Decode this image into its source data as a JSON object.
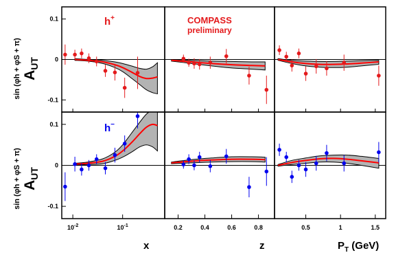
{
  "chart_data": {
    "type": "scatter",
    "title": "",
    "annotation": {
      "experiment": "COMPASS",
      "status": "preliminary"
    },
    "ylabel": {
      "main": "A",
      "sub": "UT",
      "sup": "sin (φh + φS + π)"
    },
    "ylim": [
      -0.13,
      0.13
    ],
    "yticks": [
      {
        "v": 0.1,
        "label": "0.1"
      },
      {
        "v": 0,
        "label": "0"
      },
      {
        "v": -0.1,
        "label": "-0.1"
      }
    ],
    "columns": [
      {
        "key": "x",
        "xlabel": "x",
        "scale": "log",
        "xlim": [
          0.006,
          0.7
        ],
        "ticks": [
          {
            "v": 0.01,
            "base": "10",
            "exp": "-2"
          },
          {
            "v": 0.1,
            "base": "10",
            "exp": "-1"
          }
        ]
      },
      {
        "key": "z",
        "xlabel": "z",
        "scale": "linear",
        "xlim": [
          0.1,
          0.92
        ],
        "ticks": [
          {
            "v": 0.2,
            "label": "0.2"
          },
          {
            "v": 0.4,
            "label": "0.4"
          },
          {
            "v": 0.6,
            "label": "0.6"
          },
          {
            "v": 0.8,
            "label": "0.8"
          }
        ]
      },
      {
        "key": "pt",
        "xlabel": {
          "main": "P",
          "sub": "T",
          "rest": " (GeV)"
        },
        "scale": "linear",
        "xlim": [
          0.05,
          1.65
        ],
        "ticks": [
          {
            "v": 0.5,
            "label": "0.5"
          },
          {
            "v": 1,
            "label": "1"
          },
          {
            "v": 1.5,
            "label": "1.5"
          }
        ]
      }
    ],
    "rows": [
      {
        "label": "h",
        "charge": "+",
        "color": "#e41a1c",
        "panels": [
          {
            "points": [
              [
                0.007,
                0.012,
                0.025
              ],
              [
                0.011,
                0.012,
                0.012
              ],
              [
                0.015,
                0.015,
                0.012
              ],
              [
                0.021,
                0.003,
                0.012
              ],
              [
                0.03,
                -0.005,
                0.012
              ],
              [
                0.045,
                -0.028,
                0.015
              ],
              [
                0.07,
                -0.032,
                0.02
              ],
              [
                0.11,
                -0.07,
                0.025
              ],
              [
                0.2,
                -0.033,
                0.04
              ]
            ],
            "model": [
              [
                0.011,
                0.0
              ],
              [
                0.02,
                -0.002
              ],
              [
                0.04,
                -0.006
              ],
              [
                0.07,
                -0.013
              ],
              [
                0.1,
                -0.02
              ],
              [
                0.15,
                -0.031
              ],
              [
                0.22,
                -0.042
              ],
              [
                0.3,
                -0.047
              ],
              [
                0.4,
                -0.046
              ],
              [
                0.5,
                -0.043
              ]
            ],
            "band_hi": [
              [
                0.011,
                0.002
              ],
              [
                0.02,
                0.0
              ],
              [
                0.04,
                -0.002
              ],
              [
                0.07,
                -0.006
              ],
              [
                0.1,
                -0.01
              ],
              [
                0.15,
                -0.016
              ],
              [
                0.22,
                -0.022
              ],
              [
                0.3,
                -0.024
              ],
              [
                0.4,
                -0.018
              ],
              [
                0.5,
                -0.008
              ]
            ],
            "band_lo": [
              [
                0.011,
                -0.002
              ],
              [
                0.02,
                -0.004
              ],
              [
                0.04,
                -0.01
              ],
              [
                0.07,
                -0.02
              ],
              [
                0.1,
                -0.03
              ],
              [
                0.15,
                -0.046
              ],
              [
                0.22,
                -0.062
              ],
              [
                0.3,
                -0.075
              ],
              [
                0.4,
                -0.082
              ],
              [
                0.5,
                -0.085
              ]
            ]
          },
          {
            "points": [
              [
                0.24,
                0.002,
                0.01
              ],
              [
                0.28,
                -0.008,
                0.01
              ],
              [
                0.32,
                -0.01,
                0.013
              ],
              [
                0.36,
                -0.012,
                0.013
              ],
              [
                0.44,
                -0.008,
                0.015
              ],
              [
                0.56,
                0.008,
                0.018
              ],
              [
                0.73,
                -0.04,
                0.022
              ],
              [
                0.86,
                -0.075,
                0.035
              ]
            ],
            "model": [
              [
                0.15,
                -0.002
              ],
              [
                0.3,
                -0.006
              ],
              [
                0.45,
                -0.01
              ],
              [
                0.6,
                -0.013
              ],
              [
                0.75,
                -0.015
              ],
              [
                0.85,
                -0.016
              ]
            ],
            "band_hi": [
              [
                0.15,
                0.0
              ],
              [
                0.3,
                -0.002
              ],
              [
                0.45,
                -0.004
              ],
              [
                0.6,
                -0.005
              ],
              [
                0.75,
                -0.006
              ],
              [
                0.85,
                -0.006
              ]
            ],
            "band_lo": [
              [
                0.15,
                -0.004
              ],
              [
                0.3,
                -0.01
              ],
              [
                0.45,
                -0.016
              ],
              [
                0.6,
                -0.021
              ],
              [
                0.75,
                -0.024
              ],
              [
                0.85,
                -0.026
              ]
            ]
          },
          {
            "points": [
              [
                0.12,
                0.023,
                0.012
              ],
              [
                0.22,
                0.007,
                0.012
              ],
              [
                0.3,
                -0.015,
                0.015
              ],
              [
                0.4,
                0.015,
                0.012
              ],
              [
                0.5,
                -0.035,
                0.018
              ],
              [
                0.65,
                -0.017,
                0.018
              ],
              [
                0.8,
                -0.022,
                0.018
              ],
              [
                1.05,
                -0.008,
                0.02
              ],
              [
                1.55,
                -0.04,
                0.025
              ]
            ],
            "model": [
              [
                0.1,
                0.0
              ],
              [
                0.3,
                -0.006
              ],
              [
                0.5,
                -0.01
              ],
              [
                0.7,
                -0.012
              ],
              [
                0.9,
                -0.012
              ],
              [
                1.1,
                -0.011
              ],
              [
                1.3,
                -0.009
              ],
              [
                1.55,
                -0.006
              ]
            ],
            "band_hi": [
              [
                0.1,
                0.002
              ],
              [
                0.3,
                -0.002
              ],
              [
                0.5,
                -0.004
              ],
              [
                0.7,
                -0.005
              ],
              [
                0.9,
                -0.005
              ],
              [
                1.1,
                -0.004
              ],
              [
                1.3,
                -0.003
              ],
              [
                1.55,
                -0.002
              ]
            ],
            "band_lo": [
              [
                0.1,
                -0.002
              ],
              [
                0.3,
                -0.01
              ],
              [
                0.5,
                -0.016
              ],
              [
                0.7,
                -0.019
              ],
              [
                0.9,
                -0.02
              ],
              [
                1.1,
                -0.019
              ],
              [
                1.3,
                -0.016
              ],
              [
                1.55,
                -0.012
              ]
            ]
          }
        ]
      },
      {
        "label": "h",
        "charge": "−",
        "color": "#0000ee",
        "panels": [
          {
            "points": [
              [
                0.007,
                -0.052,
                0.035
              ],
              [
                0.011,
                0.003,
                0.018
              ],
              [
                0.015,
                -0.01,
                0.015
              ],
              [
                0.021,
                0.0,
                0.013
              ],
              [
                0.03,
                0.015,
                0.012
              ],
              [
                0.045,
                -0.007,
                0.015
              ],
              [
                0.07,
                0.025,
                0.018
              ],
              [
                0.11,
                0.053,
                0.02
              ],
              [
                0.2,
                0.12,
                0.03
              ]
            ],
            "model": [
              [
                0.011,
                0.003
              ],
              [
                0.02,
                0.005
              ],
              [
                0.04,
                0.01
              ],
              [
                0.07,
                0.022
              ],
              [
                0.1,
                0.035
              ],
              [
                0.15,
                0.055
              ],
              [
                0.22,
                0.077
              ],
              [
                0.3,
                0.093
              ],
              [
                0.4,
                0.1
              ],
              [
                0.5,
                0.097
              ]
            ],
            "band_hi": [
              [
                0.011,
                0.005
              ],
              [
                0.02,
                0.008
              ],
              [
                0.04,
                0.016
              ],
              [
                0.07,
                0.032
              ],
              [
                0.1,
                0.05
              ],
              [
                0.15,
                0.078
              ],
              [
                0.22,
                0.105
              ],
              [
                0.3,
                0.125
              ],
              [
                0.4,
                0.135
              ],
              [
                0.5,
                0.14
              ]
            ],
            "band_lo": [
              [
                0.011,
                0.001
              ],
              [
                0.02,
                0.002
              ],
              [
                0.04,
                0.004
              ],
              [
                0.07,
                0.012
              ],
              [
                0.1,
                0.02
              ],
              [
                0.15,
                0.032
              ],
              [
                0.22,
                0.045
              ],
              [
                0.3,
                0.05
              ],
              [
                0.4,
                0.045
              ],
              [
                0.5,
                0.035
              ]
            ]
          },
          {
            "points": [
              [
                0.24,
                0.002,
                0.01
              ],
              [
                0.28,
                0.015,
                0.012
              ],
              [
                0.32,
                0.0,
                0.012
              ],
              [
                0.36,
                0.02,
                0.013
              ],
              [
                0.44,
                -0.002,
                0.015
              ],
              [
                0.56,
                0.022,
                0.018
              ],
              [
                0.73,
                -0.053,
                0.025
              ],
              [
                0.86,
                -0.015,
                0.035
              ]
            ],
            "model": [
              [
                0.15,
                0.006
              ],
              [
                0.3,
                0.01
              ],
              [
                0.45,
                0.013
              ],
              [
                0.6,
                0.015
              ],
              [
                0.75,
                0.015
              ],
              [
                0.85,
                0.014
              ]
            ],
            "band_hi": [
              [
                0.15,
                0.008
              ],
              [
                0.3,
                0.014
              ],
              [
                0.45,
                0.018
              ],
              [
                0.6,
                0.021
              ],
              [
                0.75,
                0.021
              ],
              [
                0.85,
                0.02
              ]
            ],
            "band_lo": [
              [
                0.15,
                0.004
              ],
              [
                0.3,
                0.006
              ],
              [
                0.45,
                0.008
              ],
              [
                0.6,
                0.009
              ],
              [
                0.75,
                0.009
              ],
              [
                0.85,
                0.008
              ]
            ]
          },
          {
            "points": [
              [
                0.12,
                0.038,
                0.015
              ],
              [
                0.22,
                0.02,
                0.013
              ],
              [
                0.3,
                -0.028,
                0.015
              ],
              [
                0.4,
                0.0,
                0.013
              ],
              [
                0.5,
                -0.01,
                0.018
              ],
              [
                0.65,
                0.005,
                0.018
              ],
              [
                0.8,
                0.03,
                0.02
              ],
              [
                1.05,
                0.005,
                0.02
              ],
              [
                1.55,
                0.032,
                0.025
              ]
            ],
            "model": [
              [
                0.1,
                0.0
              ],
              [
                0.3,
                0.007
              ],
              [
                0.5,
                0.012
              ],
              [
                0.7,
                0.016
              ],
              [
                0.9,
                0.017
              ],
              [
                1.1,
                0.015
              ],
              [
                1.3,
                0.011
              ],
              [
                1.55,
                0.006
              ]
            ],
            "band_hi": [
              [
                0.1,
                0.002
              ],
              [
                0.3,
                0.012
              ],
              [
                0.5,
                0.018
              ],
              [
                0.7,
                0.023
              ],
              [
                0.9,
                0.025
              ],
              [
                1.1,
                0.025
              ],
              [
                1.3,
                0.022
              ],
              [
                1.55,
                0.017
              ]
            ],
            "band_lo": [
              [
                0.1,
                -0.002
              ],
              [
                0.3,
                0.002
              ],
              [
                0.5,
                0.005
              ],
              [
                0.7,
                0.008
              ],
              [
                0.9,
                0.008
              ],
              [
                1.1,
                0.005
              ],
              [
                1.3,
                0.0
              ],
              [
                1.55,
                -0.007
              ]
            ]
          }
        ]
      }
    ]
  }
}
